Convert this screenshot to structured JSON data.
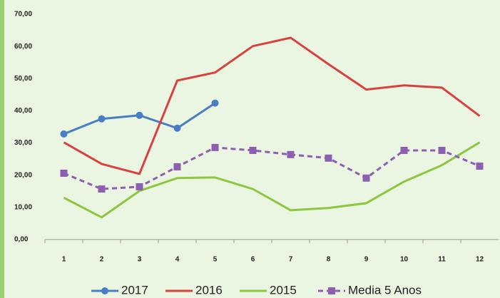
{
  "chart_data": {
    "type": "line",
    "categories": [
      "1",
      "2",
      "3",
      "4",
      "5",
      "6",
      "7",
      "8",
      "9",
      "10",
      "11",
      "12"
    ],
    "series": [
      {
        "name": "2017",
        "color": "#4a7ec4",
        "marker": "circle",
        "dashed": false,
        "values": [
          32.8,
          37.5,
          38.6,
          34.6,
          42.4,
          null,
          null,
          null,
          null,
          null,
          null,
          null
        ]
      },
      {
        "name": "2016",
        "color": "#d9413f",
        "marker": "none",
        "dashed": false,
        "values": [
          30.2,
          23.5,
          20.4,
          49.4,
          51.9,
          60.1,
          62.7,
          54.5,
          46.6,
          47.9,
          47.2,
          38.4
        ]
      },
      {
        "name": "2015",
        "color": "#8dc63f",
        "marker": "none",
        "dashed": false,
        "values": [
          13.0,
          6.9,
          15.1,
          19.1,
          19.3,
          15.7,
          9.1,
          9.8,
          11.3,
          18.0,
          23.1,
          30.2
        ]
      },
      {
        "name": "Media 5 Anos",
        "color": "#8c5fb0",
        "marker": "square",
        "dashed": true,
        "values": [
          20.6,
          15.7,
          16.4,
          22.6,
          28.6,
          27.7,
          26.4,
          25.3,
          19.1,
          27.7,
          27.7,
          22.8
        ]
      }
    ],
    "ylim": [
      0,
      70
    ],
    "yticks": [
      {
        "value": 0,
        "label": "0,00"
      },
      {
        "value": 10,
        "label": "10,00"
      },
      {
        "value": 20,
        "label": "20,00"
      },
      {
        "value": 30,
        "label": "30,00"
      },
      {
        "value": 40,
        "label": "40,00"
      },
      {
        "value": 50,
        "label": "50,00"
      },
      {
        "value": 60,
        "label": "60,00"
      },
      {
        "value": 70,
        "label": "70,00"
      }
    ],
    "grid": false,
    "legend": "bottom"
  }
}
